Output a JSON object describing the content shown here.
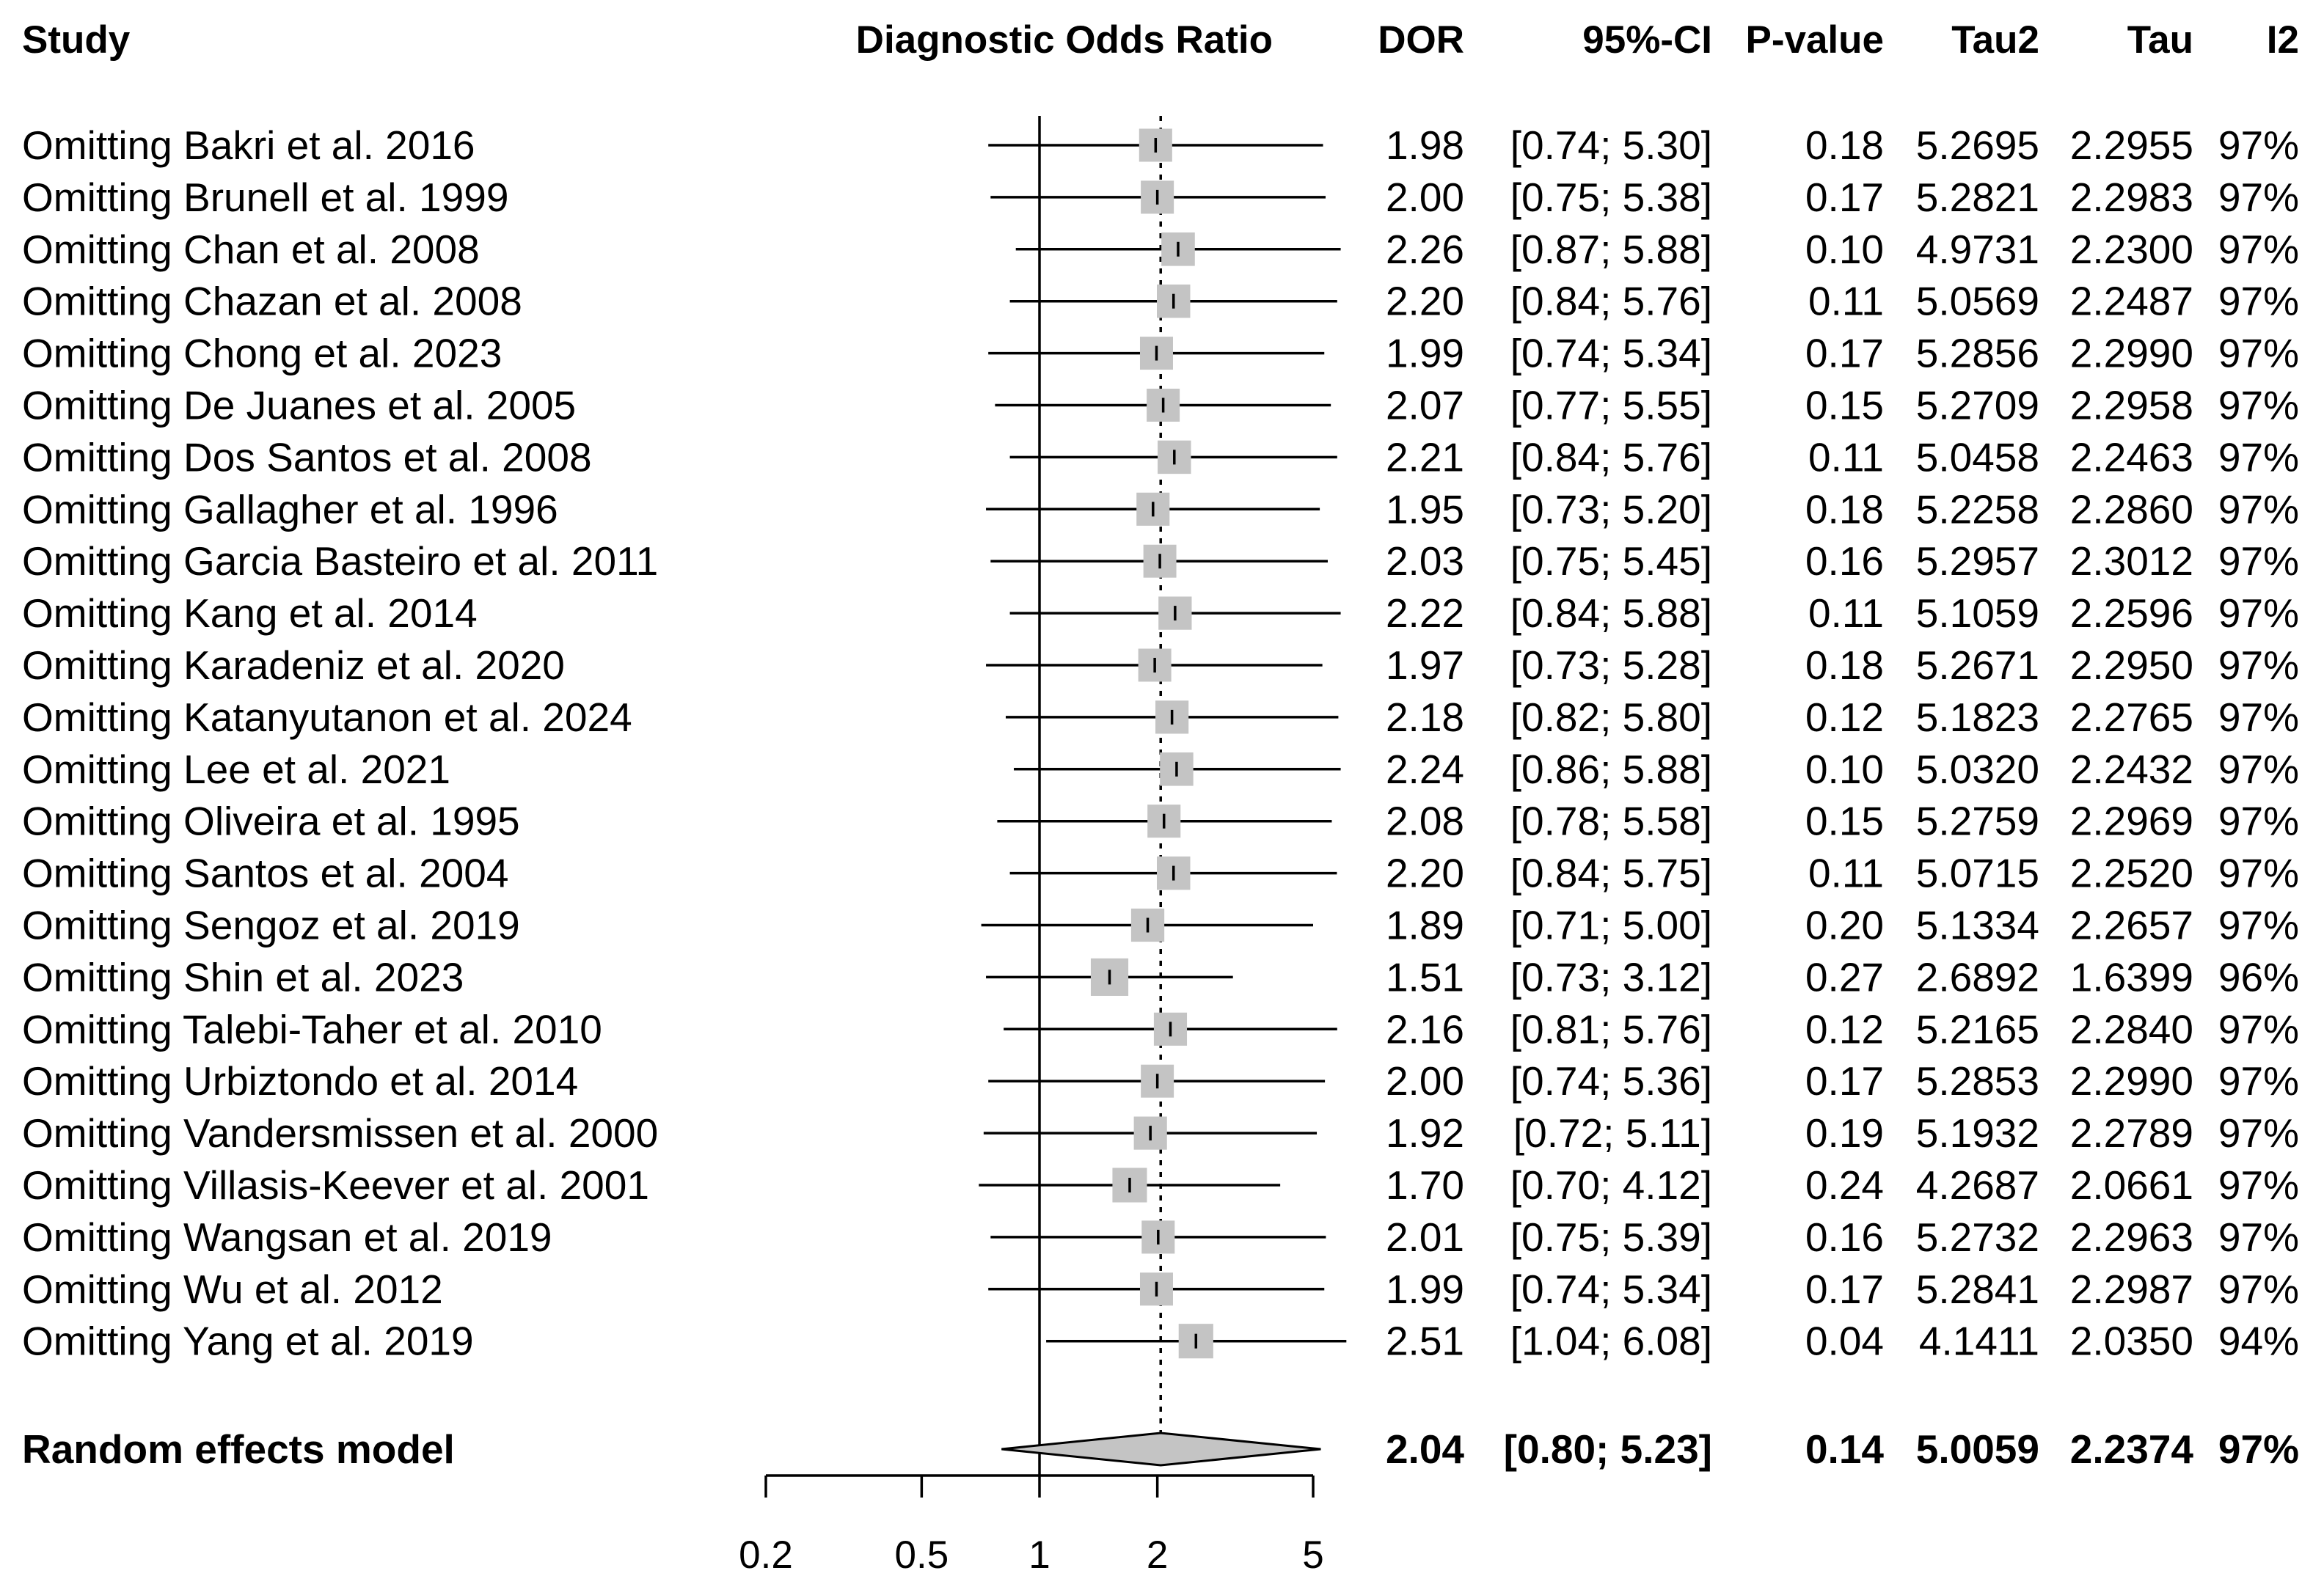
{
  "chart_data": {
    "type": "forest",
    "title": "",
    "headers": {
      "study": "Study",
      "plot": "Diagnostic Odds Ratio",
      "dor": "DOR",
      "ci": "95%-CI",
      "pvalue": "P-value",
      "tau2": "Tau2",
      "tau": "Tau",
      "i2": "I2"
    },
    "x_scale": "log",
    "xlim": [
      0.2,
      5
    ],
    "x_ticks": [
      0.2,
      0.5,
      1,
      2,
      5
    ],
    "x_tick_labels": [
      "0.2",
      "0.5",
      "1",
      "2",
      "5"
    ],
    "reference_line": 1,
    "pooled_line": 2.04,
    "studies": [
      {
        "label": "Omitting Bakri et al. 2016",
        "dor": 1.98,
        "lower": 0.74,
        "upper": 5.3,
        "dor_text": "1.98",
        "ci_text": "[0.74; 5.30]",
        "p": "0.18",
        "tau2": "5.2695",
        "tau": "2.2955",
        "i2": "97%"
      },
      {
        "label": "Omitting Brunell et al. 1999",
        "dor": 2.0,
        "lower": 0.75,
        "upper": 5.38,
        "dor_text": "2.00",
        "ci_text": "[0.75; 5.38]",
        "p": "0.17",
        "tau2": "5.2821",
        "tau": "2.2983",
        "i2": "97%"
      },
      {
        "label": "Omitting Chan et al. 2008",
        "dor": 2.26,
        "lower": 0.87,
        "upper": 5.88,
        "dor_text": "2.26",
        "ci_text": "[0.87; 5.88]",
        "p": "0.10",
        "tau2": "4.9731",
        "tau": "2.2300",
        "i2": "97%"
      },
      {
        "label": "Omitting Chazan et al. 2008",
        "dor": 2.2,
        "lower": 0.84,
        "upper": 5.76,
        "dor_text": "2.20",
        "ci_text": "[0.84; 5.76]",
        "p": "0.11",
        "tau2": "5.0569",
        "tau": "2.2487",
        "i2": "97%"
      },
      {
        "label": "Omitting Chong et al. 2023",
        "dor": 1.99,
        "lower": 0.74,
        "upper": 5.34,
        "dor_text": "1.99",
        "ci_text": "[0.74; 5.34]",
        "p": "0.17",
        "tau2": "5.2856",
        "tau": "2.2990",
        "i2": "97%"
      },
      {
        "label": "Omitting De Juanes et al. 2005",
        "dor": 2.07,
        "lower": 0.77,
        "upper": 5.55,
        "dor_text": "2.07",
        "ci_text": "[0.77; 5.55]",
        "p": "0.15",
        "tau2": "5.2709",
        "tau": "2.2958",
        "i2": "97%"
      },
      {
        "label": "Omitting Dos Santos et al. 2008",
        "dor": 2.21,
        "lower": 0.84,
        "upper": 5.76,
        "dor_text": "2.21",
        "ci_text": "[0.84; 5.76]",
        "p": "0.11",
        "tau2": "5.0458",
        "tau": "2.2463",
        "i2": "97%"
      },
      {
        "label": "Omitting Gallagher et al. 1996",
        "dor": 1.95,
        "lower": 0.73,
        "upper": 5.2,
        "dor_text": "1.95",
        "ci_text": "[0.73; 5.20]",
        "p": "0.18",
        "tau2": "5.2258",
        "tau": "2.2860",
        "i2": "97%"
      },
      {
        "label": "Omitting Garcia Basteiro et al. 2011",
        "dor": 2.03,
        "lower": 0.75,
        "upper": 5.45,
        "dor_text": "2.03",
        "ci_text": "[0.75; 5.45]",
        "p": "0.16",
        "tau2": "5.2957",
        "tau": "2.3012",
        "i2": "97%"
      },
      {
        "label": "Omitting Kang et al. 2014",
        "dor": 2.22,
        "lower": 0.84,
        "upper": 5.88,
        "dor_text": "2.22",
        "ci_text": "[0.84; 5.88]",
        "p": "0.11",
        "tau2": "5.1059",
        "tau": "2.2596",
        "i2": "97%"
      },
      {
        "label": "Omitting Karadeniz et al. 2020",
        "dor": 1.97,
        "lower": 0.73,
        "upper": 5.28,
        "dor_text": "1.97",
        "ci_text": "[0.73; 5.28]",
        "p": "0.18",
        "tau2": "5.2671",
        "tau": "2.2950",
        "i2": "97%"
      },
      {
        "label": "Omitting Katanyutanon et al. 2024",
        "dor": 2.18,
        "lower": 0.82,
        "upper": 5.8,
        "dor_text": "2.18",
        "ci_text": "[0.82; 5.80]",
        "p": "0.12",
        "tau2": "5.1823",
        "tau": "2.2765",
        "i2": "97%"
      },
      {
        "label": "Omitting Lee et al. 2021",
        "dor": 2.24,
        "lower": 0.86,
        "upper": 5.88,
        "dor_text": "2.24",
        "ci_text": "[0.86; 5.88]",
        "p": "0.10",
        "tau2": "5.0320",
        "tau": "2.2432",
        "i2": "97%"
      },
      {
        "label": "Omitting Oliveira et al. 1995",
        "dor": 2.08,
        "lower": 0.78,
        "upper": 5.58,
        "dor_text": "2.08",
        "ci_text": "[0.78; 5.58]",
        "p": "0.15",
        "tau2": "5.2759",
        "tau": "2.2969",
        "i2": "97%"
      },
      {
        "label": "Omitting Santos et al. 2004",
        "dor": 2.2,
        "lower": 0.84,
        "upper": 5.75,
        "dor_text": "2.20",
        "ci_text": "[0.84; 5.75]",
        "p": "0.11",
        "tau2": "5.0715",
        "tau": "2.2520",
        "i2": "97%"
      },
      {
        "label": "Omitting Sengoz et al. 2019",
        "dor": 1.89,
        "lower": 0.71,
        "upper": 5.0,
        "dor_text": "1.89",
        "ci_text": "[0.71; 5.00]",
        "p": "0.20",
        "tau2": "5.1334",
        "tau": "2.2657",
        "i2": "97%"
      },
      {
        "label": "Omitting Shin et al. 2023",
        "dor": 1.51,
        "lower": 0.73,
        "upper": 3.12,
        "dor_text": "1.51",
        "ci_text": "[0.73; 3.12]",
        "p": "0.27",
        "tau2": "2.6892",
        "tau": "1.6399",
        "i2": "96%"
      },
      {
        "label": "Omitting Talebi-Taher et al. 2010",
        "dor": 2.16,
        "lower": 0.81,
        "upper": 5.76,
        "dor_text": "2.16",
        "ci_text": "[0.81; 5.76]",
        "p": "0.12",
        "tau2": "5.2165",
        "tau": "2.2840",
        "i2": "97%"
      },
      {
        "label": "Omitting Urbiztondo et al. 2014",
        "dor": 2.0,
        "lower": 0.74,
        "upper": 5.36,
        "dor_text": "2.00",
        "ci_text": "[0.74; 5.36]",
        "p": "0.17",
        "tau2": "5.2853",
        "tau": "2.2990",
        "i2": "97%"
      },
      {
        "label": "Omitting Vandersmissen et al. 2000",
        "dor": 1.92,
        "lower": 0.72,
        "upper": 5.11,
        "dor_text": "1.92",
        "ci_text": "[0.72; 5.11]",
        "p": "0.19",
        "tau2": "5.1932",
        "tau": "2.2789",
        "i2": "97%"
      },
      {
        "label": "Omitting Villasis-Keever et al. 2001",
        "dor": 1.7,
        "lower": 0.7,
        "upper": 4.12,
        "dor_text": "1.70",
        "ci_text": "[0.70; 4.12]",
        "p": "0.24",
        "tau2": "4.2687",
        "tau": "2.0661",
        "i2": "97%"
      },
      {
        "label": "Omitting Wangsan et al. 2019",
        "dor": 2.01,
        "lower": 0.75,
        "upper": 5.39,
        "dor_text": "2.01",
        "ci_text": "[0.75; 5.39]",
        "p": "0.16",
        "tau2": "5.2732",
        "tau": "2.2963",
        "i2": "97%"
      },
      {
        "label": "Omitting Wu et al. 2012",
        "dor": 1.99,
        "lower": 0.74,
        "upper": 5.34,
        "dor_text": "1.99",
        "ci_text": "[0.74; 5.34]",
        "p": "0.17",
        "tau2": "5.2841",
        "tau": "2.2987",
        "i2": "97%"
      },
      {
        "label": "Omitting Yang et al. 2019",
        "dor": 2.51,
        "lower": 1.04,
        "upper": 6.08,
        "dor_text": "2.51",
        "ci_text": "[1.04; 6.08]",
        "p": "0.04",
        "tau2": "4.1411",
        "tau": "2.0350",
        "i2": "94%"
      }
    ],
    "summary": {
      "label": "Random effects model",
      "dor": 2.04,
      "lower": 0.8,
      "upper": 5.23,
      "dor_text": "2.04",
      "ci_text": "[0.80; 5.23]",
      "p": "0.14",
      "tau2": "5.0059",
      "tau": "2.2374",
      "i2": "97%"
    },
    "colors": {
      "square": "#c4c4c4",
      "diamond": "#c4c4c4",
      "line": "#000000",
      "text": "#000000"
    }
  }
}
